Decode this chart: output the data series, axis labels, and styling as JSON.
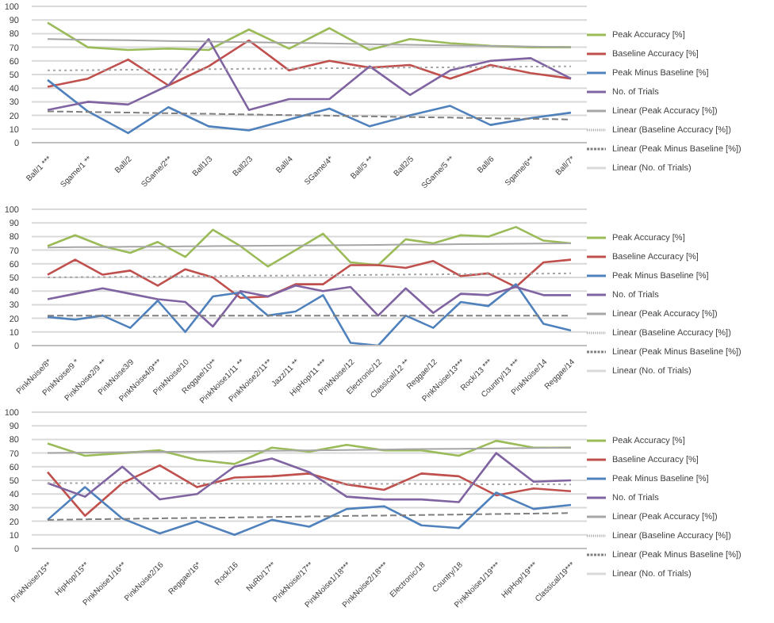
{
  "chart_data": [
    {
      "type": "line",
      "categories": [
        "Ball/1 ***",
        "Sgame/1 **",
        "Ball/2",
        "SGame/2**",
        "Ball1/3",
        "Ball2/3",
        "Ball/4",
        "SGame/4*",
        "Ball/5 **",
        "Ball2/5",
        "SGame/5 **",
        "Ball/6",
        "Sgame/6**",
        "Ball/7*"
      ],
      "ylim": [
        0,
        100
      ],
      "yticks": [
        0,
        10,
        20,
        30,
        40,
        50,
        60,
        70,
        80,
        90,
        100
      ],
      "grid": "y",
      "legend": "right",
      "marker": "none",
      "series": [
        {
          "name": "Peak Accuracy [%]",
          "color": "#9bbb59",
          "values": [
            88,
            70,
            68,
            69,
            68,
            83,
            69,
            84,
            68,
            76,
            73,
            71,
            70,
            70
          ]
        },
        {
          "name": "Baseline Accuracy [%]",
          "color": "#c0504d",
          "values": [
            41,
            47,
            61,
            42,
            56,
            75,
            53,
            60,
            55,
            57,
            47,
            57,
            51,
            47
          ]
        },
        {
          "name": "Peak Minus Baseline [%]",
          "color": "#4f81bd",
          "values": [
            46,
            23,
            7,
            26,
            12,
            9,
            17,
            25,
            12,
            20,
            27,
            13,
            18,
            22
          ]
        },
        {
          "name": "No. of Trials",
          "color": "#8064a2",
          "values": [
            24,
            30,
            28,
            42,
            76,
            24,
            32,
            32,
            56,
            35,
            53,
            60,
            62,
            47
          ]
        },
        {
          "name": "Linear (Peak Accuracy [%])",
          "color": "#a6a6a6",
          "line_style": "solid",
          "values": [
            76,
            75.5,
            75.1,
            74.6,
            74.2,
            73.7,
            73.2,
            72.8,
            72.3,
            71.8,
            71.4,
            70.9,
            70.5,
            70
          ]
        },
        {
          "name": "Linear (Baseline Accuracy [%])",
          "color": "#a6a6a6",
          "line_style": "dotted",
          "values": [
            53,
            53.2,
            53.5,
            53.7,
            53.9,
            54.2,
            54.4,
            54.6,
            54.8,
            55.1,
            55.3,
            55.5,
            55.8,
            56
          ]
        },
        {
          "name": "Linear (Peak Minus Baseline [%])",
          "color": "#7f7f7f",
          "line_style": "dashed",
          "values": [
            23,
            22.5,
            22.1,
            21.6,
            21.2,
            20.7,
            20.2,
            19.8,
            19.3,
            18.8,
            18.4,
            17.9,
            17.5,
            17
          ]
        },
        {
          "name": "Linear (No. of Trials)",
          "color": "#d9d9d9",
          "line_style": "solid",
          "values": [
            null,
            null,
            null,
            null,
            null,
            null,
            null,
            null,
            null,
            null,
            null,
            null,
            null,
            null
          ]
        }
      ]
    },
    {
      "type": "line",
      "categories": [
        "PinkNoise/8*",
        "PinkNoise/9 *",
        "PinkNoise2/9 **",
        "PinkNoise3/9",
        "PinkNoise4/9***",
        "PinkNoise/10",
        "Reggae/10**",
        "PinkNoise1/11 **",
        "PinkNoise2/11**",
        "Jazz/11 **",
        "HipHop/11 ***",
        "PinkNoise/12",
        "Electronic/12",
        "Classical/12 **",
        "Reggae/12",
        "PinkNoise/13***",
        "Rock/13 ***",
        "Country/13 ***",
        "PinkNoise/14",
        "Reggae/14"
      ],
      "ylim": [
        0,
        100
      ],
      "yticks": [
        0,
        10,
        20,
        30,
        40,
        50,
        60,
        70,
        80,
        90,
        100
      ],
      "grid": "y",
      "legend": "right",
      "marker": "none",
      "series": [
        {
          "name": "Peak Accuracy [%]",
          "color": "#9bbb59",
          "values": [
            73,
            81,
            73,
            68,
            76,
            65,
            85,
            73,
            58,
            70,
            82,
            61,
            59,
            78,
            75,
            81,
            80,
            87,
            77,
            75
          ]
        },
        {
          "name": "Baseline Accuracy [%]",
          "color": "#c0504d",
          "values": [
            52,
            63,
            52,
            55,
            44,
            56,
            50,
            35,
            36,
            45,
            45,
            59,
            59,
            57,
            62,
            51,
            53,
            43,
            61,
            63
          ]
        },
        {
          "name": "Peak Minus Baseline [%]",
          "color": "#4f81bd",
          "values": [
            21,
            19,
            22,
            13,
            33,
            10,
            36,
            39,
            22,
            25,
            37,
            2,
            0,
            22,
            13,
            32,
            29,
            45,
            16,
            11
          ]
        },
        {
          "name": "No. of Trials",
          "color": "#8064a2",
          "values": [
            34,
            38,
            42,
            38,
            34,
            32,
            14,
            40,
            36,
            44,
            40,
            43,
            22,
            42,
            24,
            38,
            37,
            43,
            37,
            37
          ]
        },
        {
          "name": "Linear (Peak Accuracy [%])",
          "color": "#a6a6a6",
          "line_style": "solid",
          "values": [
            72,
            72.2,
            72.3,
            72.5,
            72.6,
            72.8,
            72.9,
            73.1,
            73.3,
            73.4,
            73.6,
            73.7,
            73.9,
            74.1,
            74.2,
            74.4,
            74.5,
            74.7,
            74.8,
            75
          ]
        },
        {
          "name": "Linear (Baseline Accuracy [%])",
          "color": "#a6a6a6",
          "line_style": "dotted",
          "values": [
            50,
            50.2,
            50.3,
            50.5,
            50.6,
            50.8,
            50.9,
            51.1,
            51.3,
            51.4,
            51.6,
            51.7,
            51.9,
            52.1,
            52.2,
            52.4,
            52.5,
            52.7,
            52.8,
            53
          ]
        },
        {
          "name": "Linear (Peak Minus Baseline [%])",
          "color": "#7f7f7f",
          "line_style": "dashed",
          "values": [
            22,
            22,
            22,
            22,
            22,
            22,
            22,
            22,
            22,
            22,
            22,
            22,
            22,
            22,
            22,
            22,
            22,
            22,
            22,
            22
          ]
        },
        {
          "name": "Linear (No. of Trials)",
          "color": "#d9d9d9",
          "line_style": "solid",
          "values": [
            null,
            null,
            null,
            null,
            null,
            null,
            null,
            null,
            null,
            null,
            null,
            null,
            null,
            null,
            null,
            null,
            null,
            null,
            null,
            null
          ]
        }
      ]
    },
    {
      "type": "line",
      "categories": [
        "PinkNoise/15**",
        "HipHop/15**",
        "PinkNoise1/16**",
        "PinkNoise2/16",
        "Reggae/16*",
        "Rock/16",
        "NuRb/17**",
        "PinkNoise/17**",
        "PinkNoise1/18***",
        "PinkNoise2/18***",
        "Electronic/18",
        "Country/18",
        "PinkNoise1/19***",
        "HipHop/19***",
        "Classical/19***"
      ],
      "ylim": [
        0,
        100
      ],
      "yticks": [
        0,
        10,
        20,
        30,
        40,
        50,
        60,
        70,
        80,
        90,
        100
      ],
      "grid": "y",
      "legend": "right",
      "marker": "none",
      "series": [
        {
          "name": "Peak Accuracy [%]",
          "color": "#9bbb59",
          "values": [
            77,
            68,
            70,
            72,
            65,
            62,
            74,
            71,
            76,
            72,
            72,
            68,
            79,
            74,
            74
          ]
        },
        {
          "name": "Baseline Accuracy [%]",
          "color": "#c0504d",
          "values": [
            56,
            24,
            48,
            61,
            45,
            52,
            53,
            55,
            47,
            43,
            55,
            53,
            39,
            44,
            42
          ]
        },
        {
          "name": "Peak Minus Baseline [%]",
          "color": "#4f81bd",
          "values": [
            21,
            45,
            22,
            11,
            20,
            10,
            21,
            16,
            29,
            31,
            17,
            15,
            41,
            29,
            32
          ]
        },
        {
          "name": "No. of Trials",
          "color": "#8064a2",
          "values": [
            48,
            38,
            60,
            36,
            40,
            60,
            66,
            56,
            38,
            36,
            36,
            34,
            70,
            49,
            50
          ]
        },
        {
          "name": "Linear (Peak Accuracy [%])",
          "color": "#a6a6a6",
          "line_style": "solid",
          "values": [
            70,
            70.3,
            70.6,
            70.9,
            71.1,
            71.4,
            71.7,
            72,
            72.3,
            72.6,
            72.9,
            73.1,
            73.4,
            73.7,
            74
          ]
        },
        {
          "name": "Linear (Baseline Accuracy [%])",
          "color": "#a6a6a6",
          "line_style": "dotted",
          "values": [
            48,
            47.9,
            47.9,
            47.8,
            47.7,
            47.6,
            47.6,
            47.5,
            47.4,
            47.4,
            47.3,
            47.2,
            47.1,
            47.1,
            47
          ]
        },
        {
          "name": "Linear (Peak Minus Baseline [%])",
          "color": "#7f7f7f",
          "line_style": "dashed",
          "values": [
            21,
            21.4,
            21.7,
            22.1,
            22.4,
            22.8,
            23.1,
            23.5,
            23.9,
            24.2,
            24.6,
            24.9,
            25.3,
            25.6,
            26
          ]
        },
        {
          "name": "Linear (No. of Trials)",
          "color": "#d9d9d9",
          "line_style": "solid",
          "values": [
            null,
            null,
            null,
            null,
            null,
            null,
            null,
            null,
            null,
            null,
            null,
            null,
            null,
            null,
            null
          ]
        }
      ]
    }
  ]
}
